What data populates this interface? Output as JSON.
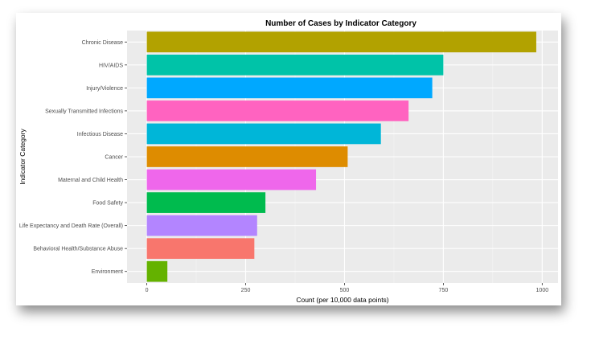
{
  "chart_data": {
    "type": "bar",
    "orientation": "horizontal",
    "title": "Number of Cases by Indicator Category",
    "xlabel": "Count (per 10,000 data points)",
    "ylabel": "Indicator Category",
    "xlim": [
      -50,
      1040
    ],
    "xticks": [
      0,
      250,
      500,
      750,
      1000
    ],
    "grid": true,
    "legend": "none",
    "categories": [
      "Chronic Disease",
      "HIV/AIDS",
      "Injury/Violence",
      "Sexually Transmitted Infections",
      "Infectious Disease",
      "Cancer",
      "Maternal and Child Health",
      "Food Safety",
      "Life Expectancy and Death Rate (Overall)",
      "Behavioral Health/Substance Abuse",
      "Environment"
    ],
    "values": [
      985,
      750,
      722,
      662,
      592,
      508,
      428,
      300,
      279,
      272,
      52
    ],
    "colors": [
      "#B2A200",
      "#00C3A8",
      "#00A8FF",
      "#FF63C0",
      "#00B6D8",
      "#DE8C00",
      "#EF67EB",
      "#00BB4E",
      "#B385FF",
      "#F8766D",
      "#64B200"
    ]
  }
}
